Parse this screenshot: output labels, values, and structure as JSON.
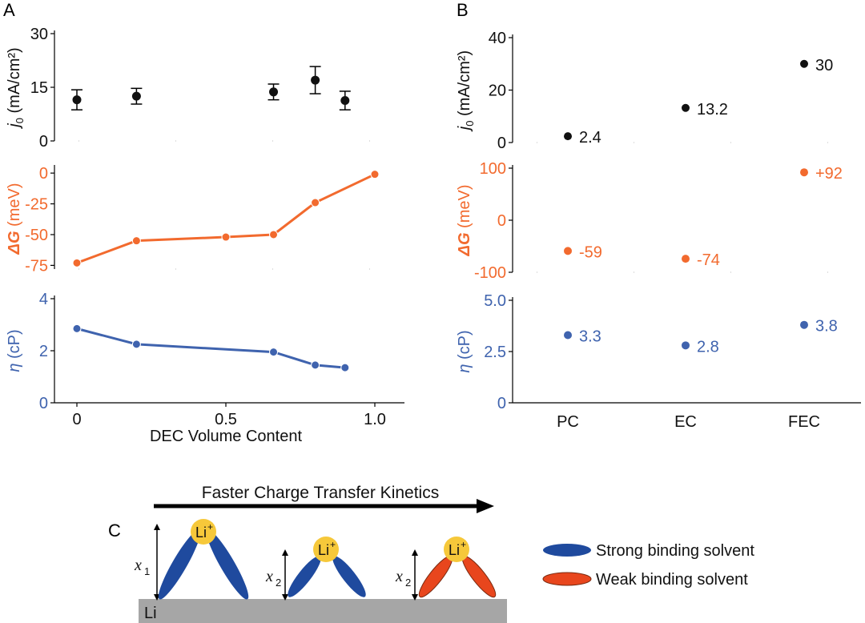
{
  "colors": {
    "black": "#111111",
    "orange": "#F26A2E",
    "blue": "#3F63AE",
    "lithium": "#F6C83A",
    "strong_solvent": "#1F4A9E",
    "weak_solvent": "#E8461D",
    "substrate": "#A6A6A6",
    "axis_gray": "#BBBBBB"
  },
  "panels": {
    "a": "A",
    "b": "B",
    "c": "C"
  },
  "chart_data": [
    {
      "id": "A-j0",
      "type": "scatter",
      "title": "",
      "ylabel_italic": "j",
      "ylabel_sub": "0",
      "ylabel_rest": " (mA/cm²)",
      "ylim": [
        0,
        30
      ],
      "yticks": [
        "0",
        "15",
        "30"
      ],
      "ytick_values": [
        0,
        15,
        30
      ],
      "x": [
        0,
        0.2,
        0.66,
        0.8,
        0.9
      ],
      "y": [
        11.5,
        12.5,
        13.7,
        17,
        11.3
      ],
      "err": [
        2.8,
        2.2,
        2.2,
        3.8,
        2.6
      ],
      "xlim": [
        -0.08,
        1.05
      ]
    },
    {
      "id": "A-dG",
      "type": "line",
      "ylabel_italic": "ΔG",
      "ylabel_rest": " (meV)",
      "ylim": [
        -78,
        4
      ],
      "yticks": [
        "0",
        "-25",
        "-50",
        "-75"
      ],
      "ytick_values": [
        0,
        -25,
        -50,
        -75
      ],
      "x": [
        0,
        0.2,
        0.5,
        0.66,
        0.8,
        1.0
      ],
      "y": [
        -73,
        -55,
        -52,
        -50,
        -24,
        -1
      ],
      "xlim": [
        -0.08,
        1.05
      ]
    },
    {
      "id": "A-eta",
      "type": "line",
      "ylabel_italic": "η",
      "ylabel_rest": " (cP)",
      "ylim": [
        0,
        4
      ],
      "yticks": [
        "0",
        "2",
        "4"
      ],
      "ytick_values": [
        0,
        2,
        4
      ],
      "x": [
        0,
        0.2,
        0.66,
        0.8,
        0.9
      ],
      "y": [
        2.85,
        2.25,
        1.95,
        1.45,
        1.35
      ],
      "xlim": [
        -0.08,
        1.05
      ],
      "xticks": [
        "0",
        "0.5",
        "1.0"
      ],
      "xtick_values": [
        0,
        0.5,
        1.0
      ],
      "xlabel": "DEC Volume Content"
    },
    {
      "id": "B-j0",
      "type": "scatter",
      "ylabel_italic": "j",
      "ylabel_sub": "0",
      "ylabel_rest": " (mA/cm²)",
      "ylim": [
        0,
        40
      ],
      "yticks": [
        "0",
        "20",
        "40"
      ],
      "ytick_values": [
        0,
        20,
        40
      ],
      "categories": [
        "PC",
        "EC",
        "FEC"
      ],
      "values": [
        2.4,
        13.2,
        30
      ],
      "labels": [
        "2.4",
        "13.2",
        "30"
      ]
    },
    {
      "id": "B-dG",
      "type": "scatter",
      "ylabel_italic": "ΔG",
      "ylabel_rest": " (meV)",
      "ylim": [
        -100,
        100
      ],
      "yticks": [
        "100",
        "0",
        "-100"
      ],
      "ytick_values": [
        100,
        0,
        -100
      ],
      "categories": [
        "PC",
        "EC",
        "FEC"
      ],
      "values": [
        -59,
        -74,
        92
      ],
      "labels": [
        "-59",
        "-74",
        "+92"
      ]
    },
    {
      "id": "B-eta",
      "type": "scatter",
      "ylabel_italic": "η",
      "ylabel_rest": " (cP)",
      "ylim": [
        0,
        5
      ],
      "yticks": [
        "5.0",
        "2.5",
        "0"
      ],
      "ytick_values": [
        5,
        2.5,
        0
      ],
      "categories": [
        "PC",
        "EC",
        "FEC"
      ],
      "values": [
        3.3,
        2.8,
        3.8
      ],
      "labels": [
        "3.3",
        "2.8",
        "3.8"
      ]
    }
  ],
  "schematic": {
    "arrow_label": "Faster Charge Transfer Kinetics",
    "ion": "Li",
    "ion_charge": "+",
    "substrate_label": "Li",
    "heights": [
      {
        "var": "x",
        "sub": "1"
      },
      {
        "var": "x",
        "sub": "2"
      },
      {
        "var": "x",
        "sub": "2"
      }
    ],
    "legend": [
      {
        "label": "Strong binding solvent"
      },
      {
        "label": "Weak binding solvent"
      }
    ]
  }
}
